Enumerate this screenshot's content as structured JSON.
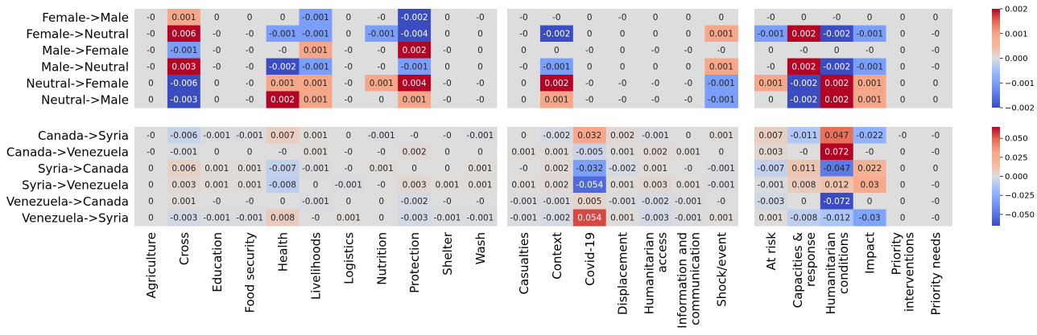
{
  "chart_data": [
    {
      "type": "heatmap",
      "title": "",
      "row_labels": [
        "Female->Male",
        "Female->Neutral",
        "Male->Female",
        "Male->Neutral",
        "Neutral->Female",
        "Neutral->Male"
      ],
      "colormap": "coolwarm",
      "color_range": [
        -0.002,
        0.002
      ],
      "colorbar_ticks": [
        "0.002",
        "0.001",
        "0.000",
        "−0.001",
        "−0.002"
      ],
      "blocks": [
        {
          "columns": [
            "Agriculture",
            "Cross",
            "Education",
            "Food security",
            "Health",
            "Livelihoods",
            "Logistics",
            "Nutrition",
            "Protection",
            "Shelter",
            "Wash"
          ],
          "values": [
            [
              "-0",
              "0.001",
              "0",
              "0",
              "0",
              "-0.001",
              "0",
              "-0",
              "-0.002",
              "0",
              "-0"
            ],
            [
              "-0",
              "0.006",
              "-0",
              "-0",
              "-0.001",
              "-0.001",
              "0",
              "-0.001",
              "-0.004",
              "0",
              "0"
            ],
            [
              "-0",
              "-0.001",
              "-0",
              "-0",
              "-0",
              "0.001",
              "-0",
              "-0",
              "0.002",
              "-0",
              "0"
            ],
            [
              "-0",
              "0.003",
              "-0",
              "-0",
              "-0.002",
              "-0.001",
              "-0",
              "-0",
              "-0.001",
              "0",
              "0"
            ],
            [
              "0",
              "-0.006",
              "0",
              "-0",
              "0.001",
              "0.001",
              "-0",
              "0.001",
              "0.004",
              "-0",
              "-0"
            ],
            [
              "0",
              "-0.003",
              "0",
              "-0",
              "0.002",
              "0.001",
              "-0",
              "0",
              "0.001",
              "-0",
              "-0"
            ]
          ]
        },
        {
          "columns": [
            "Casualties",
            "Context",
            "Covid-19",
            "Displacement",
            "Humanitarian access",
            "Information and communication",
            "Shock/event"
          ],
          "values": [
            [
              "-0",
              "-0",
              "0",
              "-0",
              "0",
              "0",
              "0"
            ],
            [
              "-0",
              "-0.002",
              "0",
              "0",
              "0",
              "0",
              "0.001"
            ],
            [
              "0",
              "0",
              "-0",
              "0",
              "-0",
              "-0",
              "-0"
            ],
            [
              "-0",
              "-0.001",
              "0",
              "0",
              "0",
              "0",
              "0.001"
            ],
            [
              "0",
              "0.002",
              "-0",
              "-0",
              "-0",
              "-0",
              "-0.001"
            ],
            [
              "0",
              "0.001",
              "-0",
              "-0",
              "-0",
              "-0",
              "-0.001"
            ]
          ]
        },
        {
          "columns": [
            "At risk",
            "Capacities & response",
            "Humanitarian conditions",
            "Impact",
            "Priority interventions",
            "Priority needs"
          ],
          "values": [
            [
              "-0",
              "0",
              "-0",
              "0",
              "0",
              "0"
            ],
            [
              "-0.001",
              "0.002",
              "-0.002",
              "-0.001",
              "0",
              "-0"
            ],
            [
              "0",
              "-0",
              "0",
              "-0",
              "0",
              "-0"
            ],
            [
              "-0",
              "0.002",
              "-0.002",
              "-0.001",
              "0",
              "-0"
            ],
            [
              "0.001",
              "-0.002",
              "0.002",
              "0.001",
              "0",
              "0"
            ],
            [
              "0",
              "-0.002",
              "0.002",
              "0.001",
              "0",
              "0"
            ]
          ]
        }
      ]
    },
    {
      "type": "heatmap",
      "title": "",
      "row_labels": [
        "Canada->Syria",
        "Canada->Venezuela",
        "Syria->Canada",
        "Syria->Venezuela",
        "Venezuela->Canada",
        "Venezuela->Syria"
      ],
      "colormap": "coolwarm",
      "color_range": [
        -0.065,
        0.065
      ],
      "colorbar_ticks": [
        "0.050",
        "0.025",
        "0.000",
        "−0.025",
        "−0.050"
      ],
      "blocks": [
        {
          "columns": [
            "Agriculture",
            "Cross",
            "Education",
            "Food security",
            "Health",
            "Livelihoods",
            "Logistics",
            "Nutrition",
            "Protection",
            "Shelter",
            "Wash"
          ],
          "values": [
            [
              "-0",
              "-0.006",
              "-0.001",
              "-0.001",
              "0.007",
              "0.001",
              "0",
              "-0.001",
              "-0",
              "-0",
              "-0.001"
            ],
            [
              "-0",
              "-0.001",
              "0",
              "0",
              "-0",
              "0.001",
              "-0",
              "-0",
              "0.002",
              "0",
              "0"
            ],
            [
              "0",
              "0.006",
              "0.001",
              "0.001",
              "-0.007",
              "-0.001",
              "-0",
              "0.001",
              "0",
              "0",
              "0.001"
            ],
            [
              "0",
              "0.003",
              "0.001",
              "0.001",
              "-0.008",
              "0",
              "-0.001",
              "-0",
              "0.003",
              "0.001",
              "0.001"
            ],
            [
              "0",
              "0.001",
              "-0",
              "-0",
              "0",
              "-0.001",
              "0",
              "0",
              "-0.002",
              "-0",
              "-0"
            ],
            [
              "0",
              "-0.003",
              "-0.001",
              "-0.001",
              "0.008",
              "-0",
              "0.001",
              "0",
              "-0.003",
              "-0.001",
              "-0.001"
            ]
          ]
        },
        {
          "columns": [
            "Casualties",
            "Context",
            "Covid-19",
            "Displacement",
            "Humanitarian access",
            "Information and communication",
            "Shock/event"
          ],
          "values": [
            [
              "0",
              "-0.002",
              "0.032",
              "0.002",
              "-0.001",
              "0",
              "0.001"
            ],
            [
              "0.001",
              "0.001",
              "-0.005",
              "0.001",
              "0.002",
              "0.001",
              "0"
            ],
            [
              "-0",
              "0.002",
              "-0.032",
              "-0.002",
              "0.001",
              "-0",
              "-0.001"
            ],
            [
              "0.001",
              "0.002",
              "-0.054",
              "0.001",
              "0.003",
              "0.001",
              "-0.001"
            ],
            [
              "-0.001",
              "-0.001",
              "0.005",
              "-0.001",
              "-0.002",
              "-0.001",
              "-0"
            ],
            [
              "-0.001",
              "-0.002",
              "0.054",
              "0.001",
              "-0.003",
              "-0.001",
              "0.001"
            ]
          ]
        },
        {
          "columns": [
            "At risk",
            "Capacities & response",
            "Humanitarian conditions",
            "Impact",
            "Priority interventions",
            "Priority needs"
          ],
          "values": [
            [
              "0.007",
              "-0.011",
              "0.047",
              "-0.022",
              "-0",
              "-0"
            ],
            [
              "0.003",
              "-0",
              "0.072",
              "-0",
              "0",
              "-0"
            ],
            [
              "-0.007",
              "0.011",
              "-0.047",
              "0.022",
              "0",
              "0"
            ],
            [
              "-0.001",
              "0.008",
              "0.012",
              "0.03",
              "0",
              "-0"
            ],
            [
              "-0.003",
              "0",
              "-0.072",
              "0",
              "0",
              "-0"
            ],
            [
              "0.001",
              "-0.008",
              "-0.012",
              "-0.03",
              "0",
              "-0"
            ]
          ]
        }
      ]
    }
  ]
}
